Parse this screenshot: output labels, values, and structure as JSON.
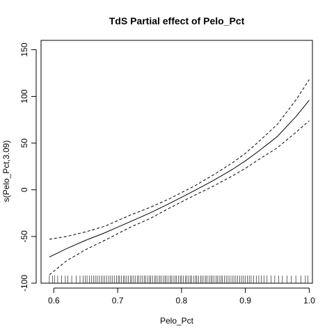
{
  "chart_data": {
    "type": "line",
    "title": "TdS Partial effect of Pelo_Pct",
    "xlabel": "Pelo_Pct",
    "ylabel": "s(Pelo_Pct,3.09)",
    "xlim": [
      0.58,
      1.005
    ],
    "ylim": [
      -100,
      160
    ],
    "x_ticks": [
      0.6,
      0.7,
      0.8,
      0.9,
      1.0
    ],
    "x_tick_labels": [
      "0.6",
      "0.7",
      "0.8",
      "0.9",
      "1.0"
    ],
    "y_ticks": [
      -100,
      -50,
      0,
      50,
      100,
      150
    ],
    "y_tick_labels": [
      "-100",
      "-50",
      "0",
      "50",
      "100",
      "150"
    ],
    "grid": false,
    "series": [
      {
        "style": "solid",
        "x": [
          0.593,
          0.62,
          0.65,
          0.68,
          0.7,
          0.72,
          0.75,
          0.78,
          0.8,
          0.82,
          0.85,
          0.88,
          0.9,
          0.92,
          0.95,
          0.98,
          1.0
        ],
        "values": [
          -72,
          -63,
          -54,
          -46,
          -40,
          -34,
          -25,
          -15,
          -8,
          -1,
          10,
          22,
          31,
          41,
          57,
          79,
          96
        ]
      },
      {
        "style": "dashed",
        "x": [
          0.593,
          0.62,
          0.65,
          0.68,
          0.7,
          0.72,
          0.75,
          0.78,
          0.8,
          0.82,
          0.85,
          0.88,
          0.9,
          0.92,
          0.95,
          0.98,
          1.0
        ],
        "values": [
          -53,
          -50,
          -45,
          -39,
          -33,
          -27,
          -19,
          -10,
          -3,
          4,
          16,
          29,
          39,
          51,
          70,
          97,
          118
        ]
      },
      {
        "style": "dashed",
        "x": [
          0.593,
          0.62,
          0.65,
          0.68,
          0.7,
          0.72,
          0.75,
          0.78,
          0.8,
          0.82,
          0.85,
          0.88,
          0.9,
          0.92,
          0.95,
          0.98,
          1.0
        ],
        "values": [
          -91,
          -76,
          -64,
          -54,
          -47,
          -40,
          -31,
          -20,
          -13,
          -6,
          4,
          15,
          23,
          32,
          45,
          62,
          74
        ]
      }
    ],
    "rug": [
      0.593,
      0.598,
      0.601,
      0.606,
      0.612,
      0.618,
      0.622,
      0.628,
      0.635,
      0.641,
      0.646,
      0.649,
      0.652,
      0.656,
      0.659,
      0.662,
      0.665,
      0.668,
      0.671,
      0.674,
      0.677,
      0.68,
      0.683,
      0.686,
      0.689,
      0.692,
      0.695,
      0.698,
      0.701,
      0.703,
      0.706,
      0.709,
      0.711,
      0.714,
      0.717,
      0.72,
      0.722,
      0.725,
      0.728,
      0.731,
      0.733,
      0.736,
      0.739,
      0.742,
      0.744,
      0.747,
      0.75,
      0.752,
      0.755,
      0.758,
      0.76,
      0.763,
      0.766,
      0.768,
      0.771,
      0.774,
      0.776,
      0.779,
      0.782,
      0.784,
      0.787,
      0.79,
      0.792,
      0.795,
      0.798,
      0.8,
      0.803,
      0.806,
      0.808,
      0.811,
      0.814,
      0.816,
      0.819,
      0.822,
      0.824,
      0.827,
      0.83,
      0.832,
      0.835,
      0.838,
      0.84,
      0.843,
      0.846,
      0.848,
      0.851,
      0.854,
      0.856,
      0.859,
      0.862,
      0.864,
      0.867,
      0.87,
      0.873,
      0.876,
      0.879,
      0.882,
      0.885,
      0.888,
      0.891,
      0.894,
      0.897,
      0.9,
      0.903,
      0.906,
      0.909,
      0.913,
      0.917,
      0.921,
      0.925,
      0.929,
      0.934,
      0.94,
      0.946,
      0.952,
      0.958,
      0.965,
      0.972,
      0.979,
      0.987,
      0.994,
      0.998
    ]
  }
}
